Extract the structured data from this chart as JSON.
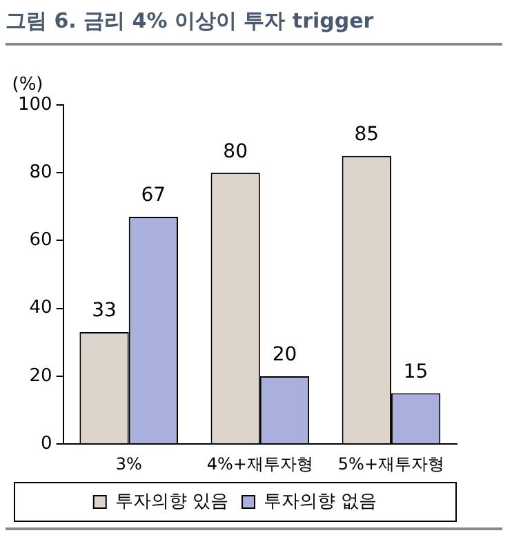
{
  "chart_data": {
    "type": "bar",
    "title": "그림 6. 금리 4% 이상이 투자 trigger",
    "ylabel": "(%)",
    "categories": [
      "3%",
      "4%+재투자형",
      "5%+재투자형"
    ],
    "series": [
      {
        "name": "투자의향 있음",
        "color": "#ddd5cb",
        "values": [
          33,
          80,
          85
        ]
      },
      {
        "name": "투자의향 없음",
        "color": "#aab0dd",
        "values": [
          67,
          20,
          15
        ]
      }
    ],
    "ylim": [
      0,
      100
    ],
    "yticks": [
      0,
      20,
      40,
      60,
      80,
      100
    ],
    "grid": false,
    "legend": "bottom",
    "data_labels": true
  }
}
